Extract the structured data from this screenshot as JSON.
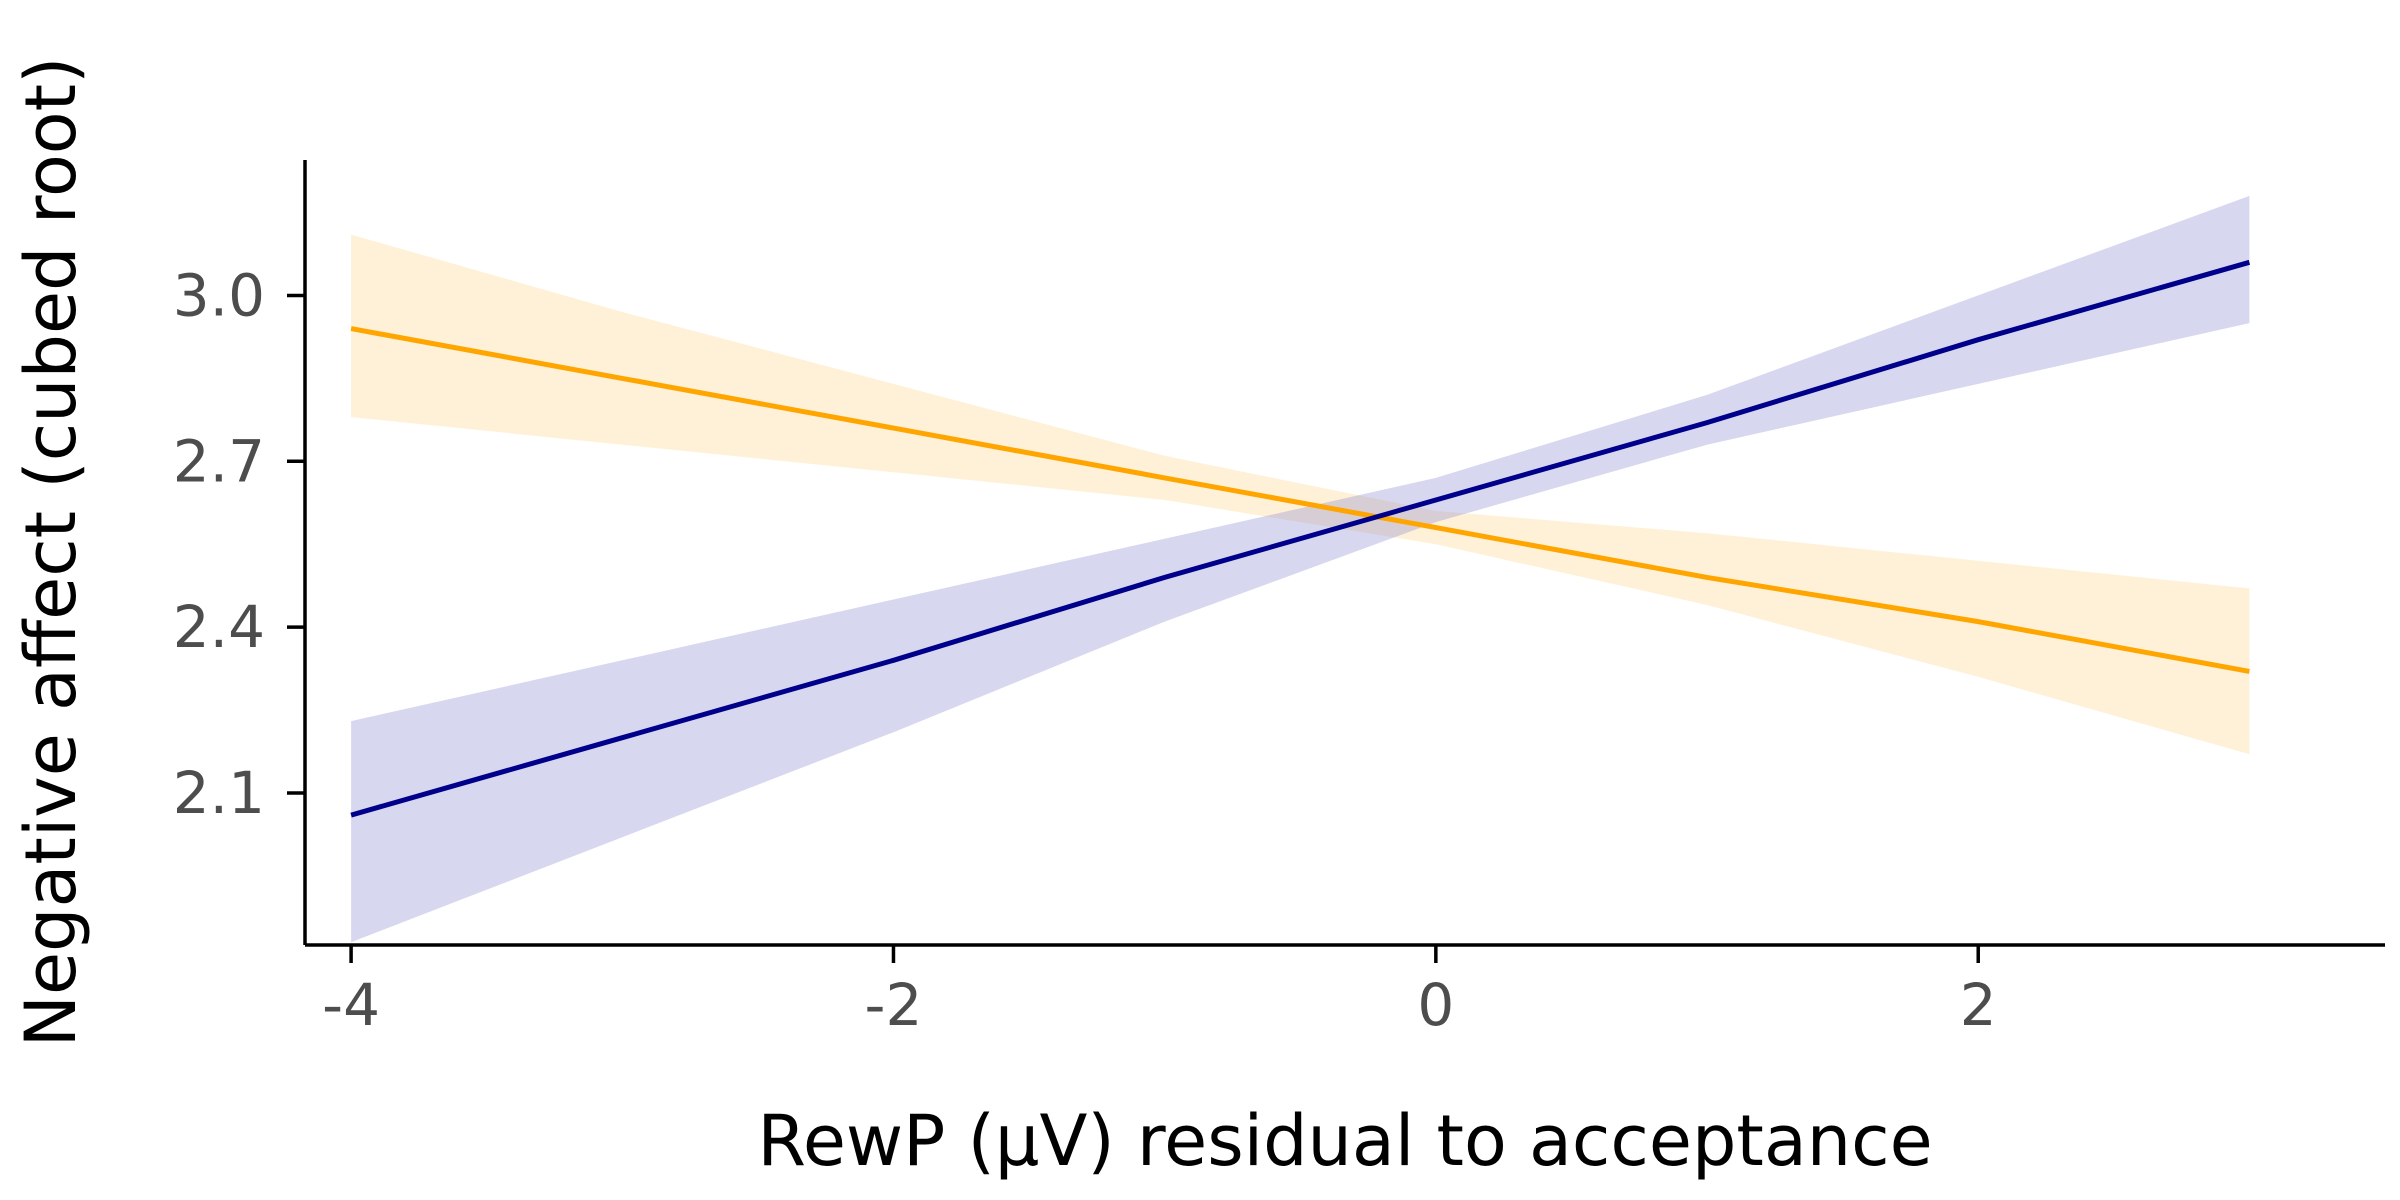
{
  "chart_data": {
    "type": "line",
    "title": "",
    "xlabel": "RewP (μV) residual to acceptance",
    "ylabel": "Negative affect (cubed root)",
    "xlim": [
      -4.17,
      3.5
    ],
    "ylim": [
      1.825,
      3.245
    ],
    "x_ticks": [
      {
        "value": -4,
        "label": "-4"
      },
      {
        "value": -2,
        "label": "-2"
      },
      {
        "value": 0,
        "label": "0"
      },
      {
        "value": 2,
        "label": "2"
      }
    ],
    "y_ticks": [
      {
        "value": 2.1,
        "label": "2.1"
      },
      {
        "value": 2.4,
        "label": "2.4"
      },
      {
        "value": 2.7,
        "label": "2.7"
      },
      {
        "value": 3.0,
        "label": "3.0"
      }
    ],
    "grid": false,
    "legend": "none",
    "series": [
      {
        "color": "#00008B",
        "band_color": "#7B7BCC",
        "band_opacity": 0.3,
        "x": [
          -4,
          -3,
          -2,
          -1,
          0,
          1,
          2,
          3
        ],
        "y": [
          2.06,
          2.2,
          2.34,
          2.49,
          2.63,
          2.77,
          2.92,
          3.06
        ],
        "lower": [
          1.83,
          2.02,
          2.21,
          2.41,
          2.59,
          2.73,
          2.84,
          2.95
        ],
        "upper": [
          2.23,
          2.34,
          2.45,
          2.56,
          2.67,
          2.82,
          3.0,
          3.18
        ]
      },
      {
        "color": "#FFA500",
        "band_color": "#FFE0A8",
        "band_opacity": 0.45,
        "x": [
          -4,
          -3,
          -2,
          -1,
          0,
          1,
          2,
          3
        ],
        "y": [
          2.94,
          2.85,
          2.76,
          2.67,
          2.58,
          2.49,
          2.41,
          2.32
        ],
        "lower": [
          2.78,
          2.73,
          2.68,
          2.63,
          2.55,
          2.44,
          2.31,
          2.17
        ],
        "upper": [
          3.11,
          2.97,
          2.84,
          2.71,
          2.61,
          2.57,
          2.52,
          2.47
        ]
      }
    ]
  }
}
